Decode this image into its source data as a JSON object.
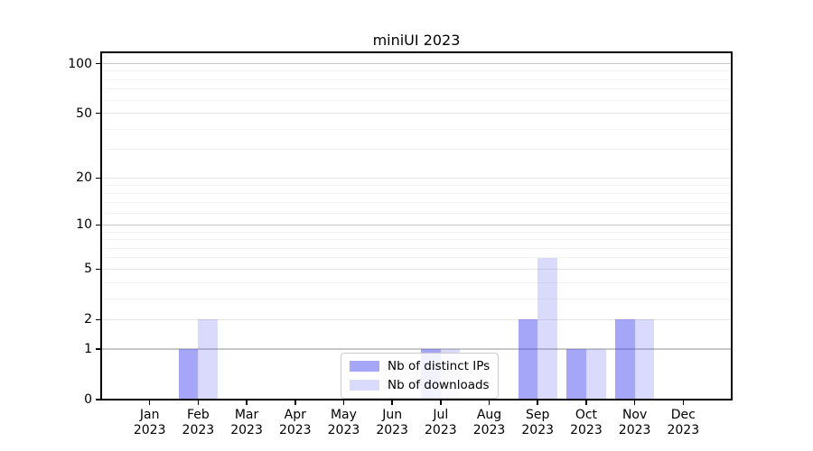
{
  "chart_data": {
    "type": "bar",
    "title": "miniUI 2023",
    "categories": [
      {
        "month": "Jan",
        "year": "2023"
      },
      {
        "month": "Feb",
        "year": "2023"
      },
      {
        "month": "Mar",
        "year": "2023"
      },
      {
        "month": "Apr",
        "year": "2023"
      },
      {
        "month": "May",
        "year": "2023"
      },
      {
        "month": "Jun",
        "year": "2023"
      },
      {
        "month": "Jul",
        "year": "2023"
      },
      {
        "month": "Aug",
        "year": "2023"
      },
      {
        "month": "Sep",
        "year": "2023"
      },
      {
        "month": "Oct",
        "year": "2023"
      },
      {
        "month": "Nov",
        "year": "2023"
      },
      {
        "month": "Dec",
        "year": "2023"
      }
    ],
    "series": [
      {
        "name": "Nb of distinct IPs",
        "color": "rgba(70,70,240,0.48)",
        "color_hex": "#a6a6f4",
        "values": [
          0,
          1,
          0,
          0,
          0,
          0,
          1,
          0,
          2,
          1,
          2,
          0
        ]
      },
      {
        "name": "Nb of downloads",
        "color": "rgba(70,70,240,0.20)",
        "color_hex": "#dcdcfa",
        "values": [
          0,
          2,
          0,
          0,
          0,
          0,
          1,
          0,
          6,
          1,
          2,
          0
        ]
      }
    ],
    "scale": "log1p",
    "ylim": [
      0,
      117
    ],
    "yticks": [
      0,
      1,
      2,
      5,
      10,
      20,
      50,
      100
    ],
    "minor_yticks": [
      3,
      4,
      6,
      7,
      8,
      9,
      12,
      14,
      16,
      18,
      30,
      40,
      60,
      70,
      80,
      90
    ],
    "grid": "horizontal",
    "legend_position": "inside-bottom-center",
    "xlabel": "",
    "ylabel": "",
    "axis_color": "#000000",
    "gridline_colors": {
      "decade": "#c8c8c8",
      "major": "#e7e7e7",
      "minor": "#f3f3f3"
    }
  }
}
